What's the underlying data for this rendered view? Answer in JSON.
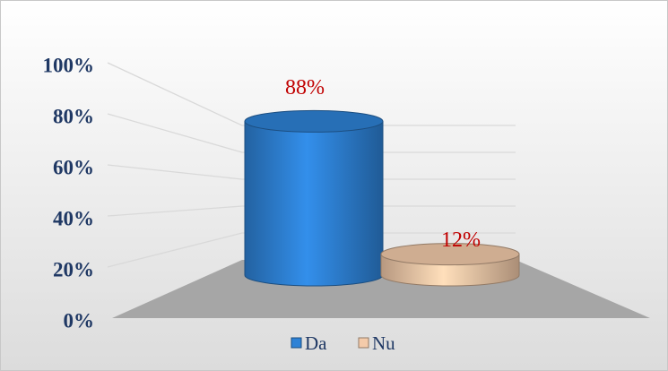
{
  "chart_data": {
    "type": "cylinder",
    "categories": [
      "Da",
      "Nu"
    ],
    "values": [
      88,
      12
    ],
    "value_labels": [
      "88%",
      "12%"
    ],
    "colors": [
      "#2e82d6",
      "#f4cbaa"
    ],
    "ylim": [
      0,
      100
    ],
    "yticks": [
      {
        "value": 0,
        "label": "0%"
      },
      {
        "value": 20,
        "label": "20%"
      },
      {
        "value": 40,
        "label": "40%"
      },
      {
        "value": 60,
        "label": "60%"
      },
      {
        "value": 80,
        "label": "80%"
      },
      {
        "value": 100,
        "label": "100%"
      }
    ],
    "grid": true,
    "legend": "bottom"
  }
}
